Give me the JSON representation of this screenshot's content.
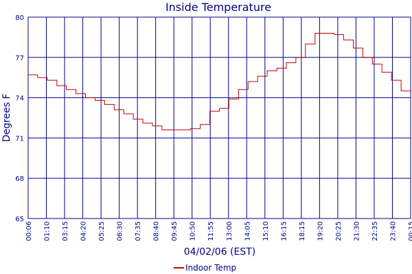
{
  "chart_data": {
    "type": "line",
    "title": "Inside Temperature",
    "xlabel": "04/02/06 (EST)",
    "ylabel": "Degrees F",
    "ylim": [
      65,
      80
    ],
    "yticks": [
      "80",
      "77",
      "74",
      "71",
      "68",
      "65"
    ],
    "xtick_labels": [
      "00:06",
      "01:10",
      "03:15",
      "04:20",
      "05:25",
      "06:30",
      "07:35",
      "08:40",
      "09:45",
      "10:50",
      "11:55",
      "13:00",
      "14:05",
      "15:10",
      "16:15",
      "18:15",
      "19:20",
      "20:25",
      "21:30",
      "22:35",
      "23:40",
      "00:15"
    ],
    "grid": true,
    "legend_position": "bottom-center",
    "series_color": "#c00000",
    "grid_color": "#000080",
    "series": [
      {
        "name": "Indoor Temp",
        "values": [
          75.7,
          75.5,
          75.3,
          74.9,
          74.6,
          74.3,
          74.0,
          73.8,
          73.5,
          73.1,
          72.8,
          72.4,
          72.1,
          71.9,
          71.6,
          71.6,
          71.6,
          71.7,
          72.0,
          73.0,
          73.2,
          73.9,
          74.6,
          75.2,
          75.6,
          76.0,
          76.2,
          76.6,
          77.0,
          78.0,
          78.8,
          78.8,
          78.7,
          78.3,
          77.7,
          77.0,
          76.5,
          75.9,
          75.3,
          74.5
        ]
      }
    ]
  }
}
